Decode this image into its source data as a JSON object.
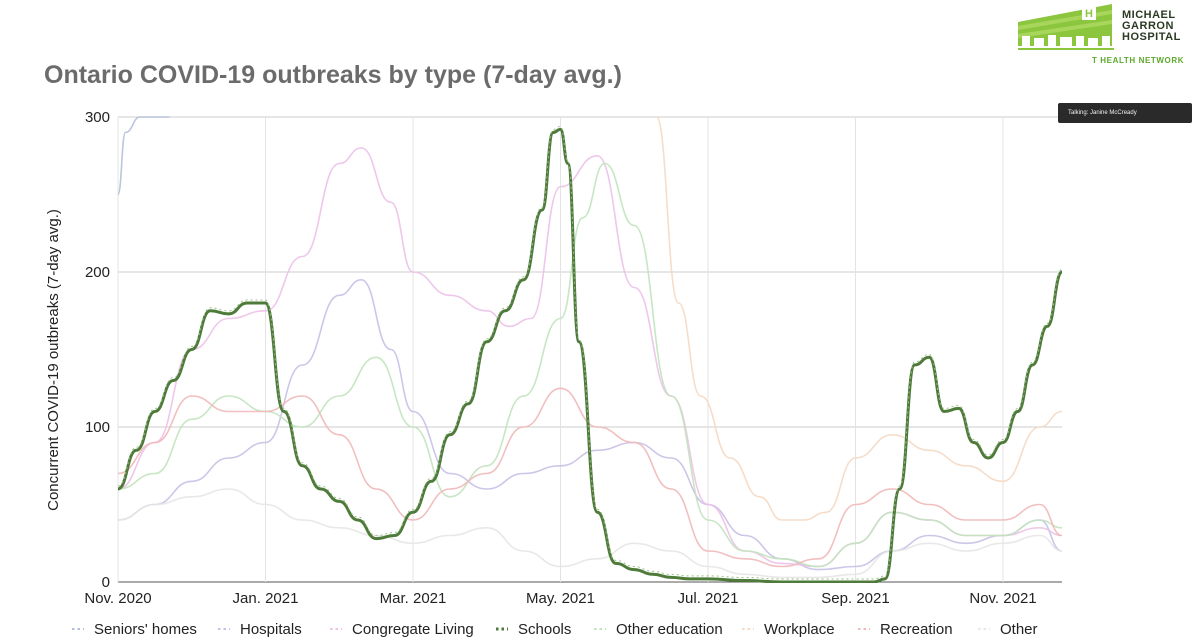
{
  "chart_data": {
    "type": "line",
    "title": "Ontario COVID-19 outbreaks by type (7-day avg.)",
    "xlabel": "",
    "ylabel": "Concurrent COVID-19 outbreaks (7-day avg.)",
    "ylim": [
      0,
      300
    ],
    "xlim": [
      0,
      12.8
    ],
    "yticks": [
      0,
      100,
      200,
      300
    ],
    "xticks": [
      {
        "label": "Nov. 2020",
        "value": 0
      },
      {
        "label": "Jan. 2021",
        "value": 2
      },
      {
        "label": "Mar. 2021",
        "value": 4
      },
      {
        "label": "May. 2021",
        "value": 6
      },
      {
        "label": "Jul. 2021",
        "value": 8
      },
      {
        "label": "Sep. 2021",
        "value": 10
      },
      {
        "label": "Nov. 2021",
        "value": 12
      }
    ],
    "grid": true,
    "legend_position": "bottom",
    "x_unit": "months since Nov. 2020",
    "series": [
      {
        "name": "Seniors' homes",
        "color": "#b5bfd9",
        "x": [
          0,
          0.1,
          0.3,
          0.5,
          0.7
        ],
        "values": [
          250,
          290,
          300,
          300,
          300
        ]
      },
      {
        "name": "Hospitals",
        "color": "#c8c0e6",
        "x": [
          0,
          0.5,
          1,
          1.5,
          2,
          2.5,
          3,
          3.3,
          3.7,
          4,
          4.5,
          5,
          5.5,
          6,
          6.5,
          7,
          7.5,
          8,
          8.5,
          9,
          9.5,
          10,
          10.5,
          11,
          11.5,
          12,
          12.5,
          12.8
        ],
        "values": [
          40,
          50,
          65,
          80,
          90,
          140,
          185,
          195,
          150,
          110,
          70,
          60,
          70,
          75,
          85,
          90,
          80,
          50,
          30,
          15,
          8,
          10,
          20,
          30,
          25,
          30,
          40,
          20
        ]
      },
      {
        "name": "Congregate Living",
        "color": "#ecc1e8",
        "x": [
          0,
          0.5,
          1,
          1.5,
          2,
          2.5,
          3,
          3.3,
          3.7,
          4,
          4.5,
          5,
          5.3,
          5.6,
          6,
          6.5,
          7,
          7.5,
          8,
          8.5,
          9,
          9.5,
          10,
          10.5,
          11,
          11.5,
          12,
          12.5,
          12.8
        ],
        "values": [
          60,
          90,
          150,
          170,
          175,
          210,
          270,
          280,
          245,
          200,
          185,
          175,
          165,
          170,
          255,
          275,
          190,
          120,
          50,
          20,
          12,
          10,
          25,
          45,
          40,
          30,
          30,
          35,
          30
        ]
      },
      {
        "name": "Schools",
        "color": "#4e7a3a",
        "x": [
          0,
          0.25,
          0.5,
          0.75,
          1,
          1.25,
          1.5,
          1.75,
          2,
          2.25,
          2.5,
          2.75,
          3,
          3.25,
          3.5,
          3.75,
          4,
          4.25,
          4.5,
          4.75,
          5,
          5.25,
          5.5,
          5.75,
          5.9,
          6,
          6.1,
          6.25,
          6.5,
          6.75,
          7,
          7.25,
          7.5,
          7.75,
          8,
          8.5,
          9,
          9.5,
          10,
          10.25,
          10.4,
          10.6,
          10.8,
          11,
          11.2,
          11.4,
          11.6,
          11.8,
          12,
          12.2,
          12.4,
          12.6,
          12.8
        ],
        "values": [
          60,
          85,
          110,
          130,
          150,
          175,
          173,
          180,
          180,
          110,
          75,
          60,
          52,
          40,
          28,
          30,
          45,
          65,
          95,
          115,
          155,
          175,
          195,
          240,
          290,
          292,
          270,
          155,
          45,
          12,
          8,
          5,
          3,
          2,
          2,
          1,
          0,
          0,
          0,
          0,
          2,
          60,
          140,
          145,
          110,
          112,
          90,
          80,
          90,
          110,
          140,
          165,
          200
        ]
      },
      {
        "name": "Other education",
        "color": "#c1e3bd",
        "x": [
          0,
          0.5,
          1,
          1.5,
          2,
          2.5,
          3,
          3.5,
          4,
          4.5,
          5,
          5.5,
          6,
          6.3,
          6.6,
          7,
          7.5,
          8,
          8.5,
          9,
          9.5,
          10,
          10.5,
          11,
          11.5,
          12,
          12.5,
          12.8
        ],
        "values": [
          60,
          70,
          105,
          120,
          110,
          100,
          120,
          145,
          100,
          55,
          75,
          120,
          170,
          235,
          270,
          230,
          120,
          40,
          20,
          15,
          10,
          25,
          45,
          40,
          30,
          30,
          40,
          35
        ]
      },
      {
        "name": "Workplace",
        "color": "#f4d9c4",
        "x": [
          7.3,
          7.6,
          7.9,
          8.3,
          8.7,
          9,
          9.3,
          9.6,
          10,
          10.5,
          11,
          11.5,
          12,
          12.5,
          12.8
        ],
        "values": [
          300,
          180,
          120,
          80,
          55,
          40,
          40,
          45,
          80,
          95,
          85,
          75,
          65,
          100,
          110
        ]
      },
      {
        "name": "Recreation",
        "color": "#efb8b8",
        "x": [
          0,
          0.5,
          1,
          1.5,
          2,
          2.5,
          3,
          3.5,
          4,
          4.5,
          5,
          5.5,
          6,
          6.5,
          7,
          7.5,
          8,
          8.5,
          9,
          9.5,
          10,
          10.5,
          11,
          11.5,
          12,
          12.5,
          12.8
        ],
        "values": [
          70,
          90,
          120,
          110,
          110,
          120,
          95,
          60,
          40,
          60,
          70,
          100,
          125,
          100,
          90,
          60,
          20,
          15,
          10,
          15,
          50,
          60,
          50,
          40,
          40,
          50,
          30
        ]
      },
      {
        "name": "Other",
        "color": "#e6e6e6",
        "x": [
          0,
          0.5,
          1,
          1.5,
          2,
          2.5,
          3,
          3.5,
          4,
          4.5,
          5,
          5.5,
          6,
          6.5,
          7,
          7.5,
          8,
          8.5,
          9,
          9.5,
          10,
          10.5,
          11,
          11.5,
          12,
          12.5,
          12.8
        ],
        "values": [
          40,
          50,
          55,
          60,
          50,
          40,
          35,
          30,
          25,
          30,
          35,
          20,
          10,
          15,
          25,
          20,
          10,
          5,
          3,
          3,
          5,
          20,
          25,
          20,
          25,
          30,
          20
        ]
      }
    ]
  },
  "logo": {
    "name_line1": "MICHAEL",
    "name_line2": "GARRON",
    "name_line3": "HOSPITAL",
    "network": "T HEALTH NETWORK"
  },
  "overlay": {
    "talking": "Talking: Janine McCready"
  }
}
